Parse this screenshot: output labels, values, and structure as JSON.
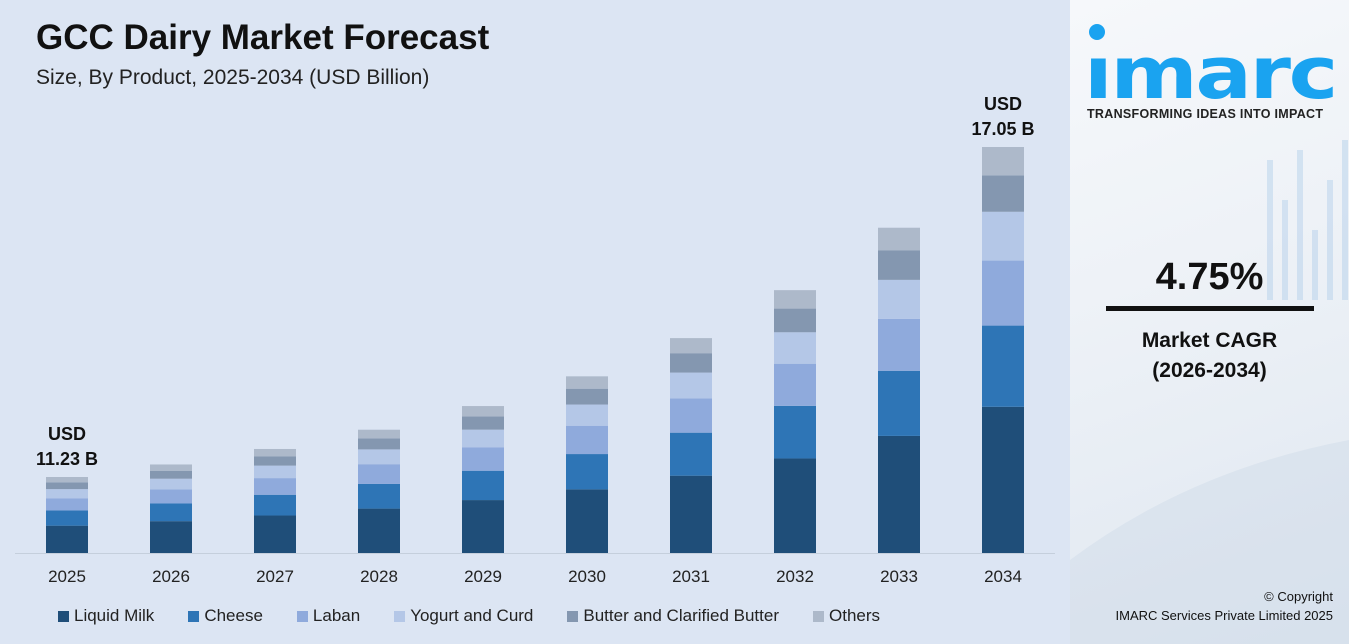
{
  "title": "GCC Dairy Market Forecast",
  "subtitle": "Size, By Product, 2025-2034 (USD Billion)",
  "chart_data": {
    "type": "bar",
    "stacked": true,
    "title": "GCC Dairy Market Forecast",
    "subtitle": "Size, By Product, 2025-2034 (USD Billion)",
    "categories": [
      "2025",
      "2026",
      "2027",
      "2028",
      "2029",
      "2030",
      "2031",
      "2032",
      "2033",
      "2034"
    ],
    "series": [
      {
        "name": "Liquid Milk",
        "color": "#1f4e79",
        "values": [
          4.04,
          4.23,
          4.44,
          4.65,
          4.87,
          5.1,
          5.34,
          5.59,
          5.86,
          6.14
        ]
      },
      {
        "name": "Cheese",
        "color": "#2e75b6",
        "values": [
          2.25,
          2.35,
          2.46,
          2.58,
          2.7,
          2.83,
          2.97,
          3.11,
          3.26,
          3.41
        ]
      },
      {
        "name": "Laban",
        "color": "#8faadc",
        "values": [
          1.8,
          1.88,
          1.97,
          2.07,
          2.16,
          2.27,
          2.37,
          2.49,
          2.6,
          2.73
        ]
      },
      {
        "name": "Yogurt and Curd",
        "color": "#b4c7e7",
        "values": [
          1.35,
          1.41,
          1.48,
          1.55,
          1.62,
          1.7,
          1.78,
          1.86,
          1.95,
          2.05
        ]
      },
      {
        "name": "Butter and Clarified Butter",
        "color": "#8497b0",
        "values": [
          1.01,
          1.06,
          1.11,
          1.16,
          1.22,
          1.27,
          1.34,
          1.4,
          1.47,
          1.53
        ]
      },
      {
        "name": "Others",
        "color": "#adb9ca",
        "values": [
          0.78,
          0.83,
          0.86,
          0.9,
          0.95,
          0.99,
          1.04,
          1.09,
          1.14,
          1.19
        ]
      }
    ],
    "totals": [
      11.23,
      11.76,
      12.32,
      12.91,
      13.52,
      14.16,
      14.84,
      15.54,
      16.28,
      17.05
    ],
    "annotations": [
      {
        "category": "2025",
        "line1": "USD",
        "line2": "11.23 B"
      },
      {
        "category": "2034",
        "line1": "USD",
        "line2": "17.05 B"
      }
    ],
    "grid": false,
    "legend": "bottom"
  },
  "brand": {
    "name": "imarc",
    "tagline": "TRANSFORMING IDEAS INTO IMPACT",
    "color": "#1aa3f0"
  },
  "cagr": {
    "value": "4.75%",
    "label1": "Market CAGR",
    "label2": "(2026-2034)"
  },
  "copyright": {
    "line1": "© Copyright",
    "line2": "IMARC Services Private Limited 2025"
  }
}
